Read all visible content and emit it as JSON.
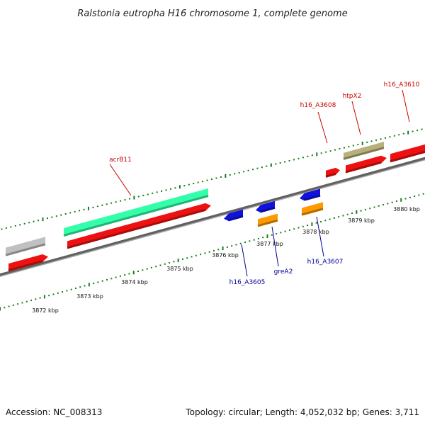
{
  "title": "Ralstonia eutropha H16 chromosome 1, complete genome",
  "footer": {
    "accession": "Accession: NC_008313",
    "summary": "Topology: circular; Length: 4,052,032 bp; Genes: 3,711"
  },
  "colors": {
    "backbone": "#8a8a8a",
    "tick": "#1a7a1a",
    "red_gene": "#ee1111",
    "blue_gene": "#1111dd",
    "orange_gene": "#ff9900",
    "gray_gene": "#c0c0c0",
    "teal_gene": "#33ffaa",
    "olive_gene": "#b8b07a",
    "red_label": "#cc0000",
    "blue_label": "#000099"
  },
  "scale": {
    "unit": "kbp",
    "labels": [
      "3872 kbp",
      "3873 kbp",
      "3874 kbp",
      "3875 kbp",
      "3876 kbp",
      "3877 kbp",
      "3878 kbp",
      "3879 kbp",
      "3880 kbp"
    ]
  },
  "gene_labels": {
    "acrB11": "acrB11",
    "h16_A3608": "h16_A3608",
    "htpX2": "htpX2",
    "h16_A3610": "h16_A3610",
    "h16_A3605": "h16_A3605",
    "greA2": "greA2",
    "h16_A3607": "h16_A3607"
  }
}
